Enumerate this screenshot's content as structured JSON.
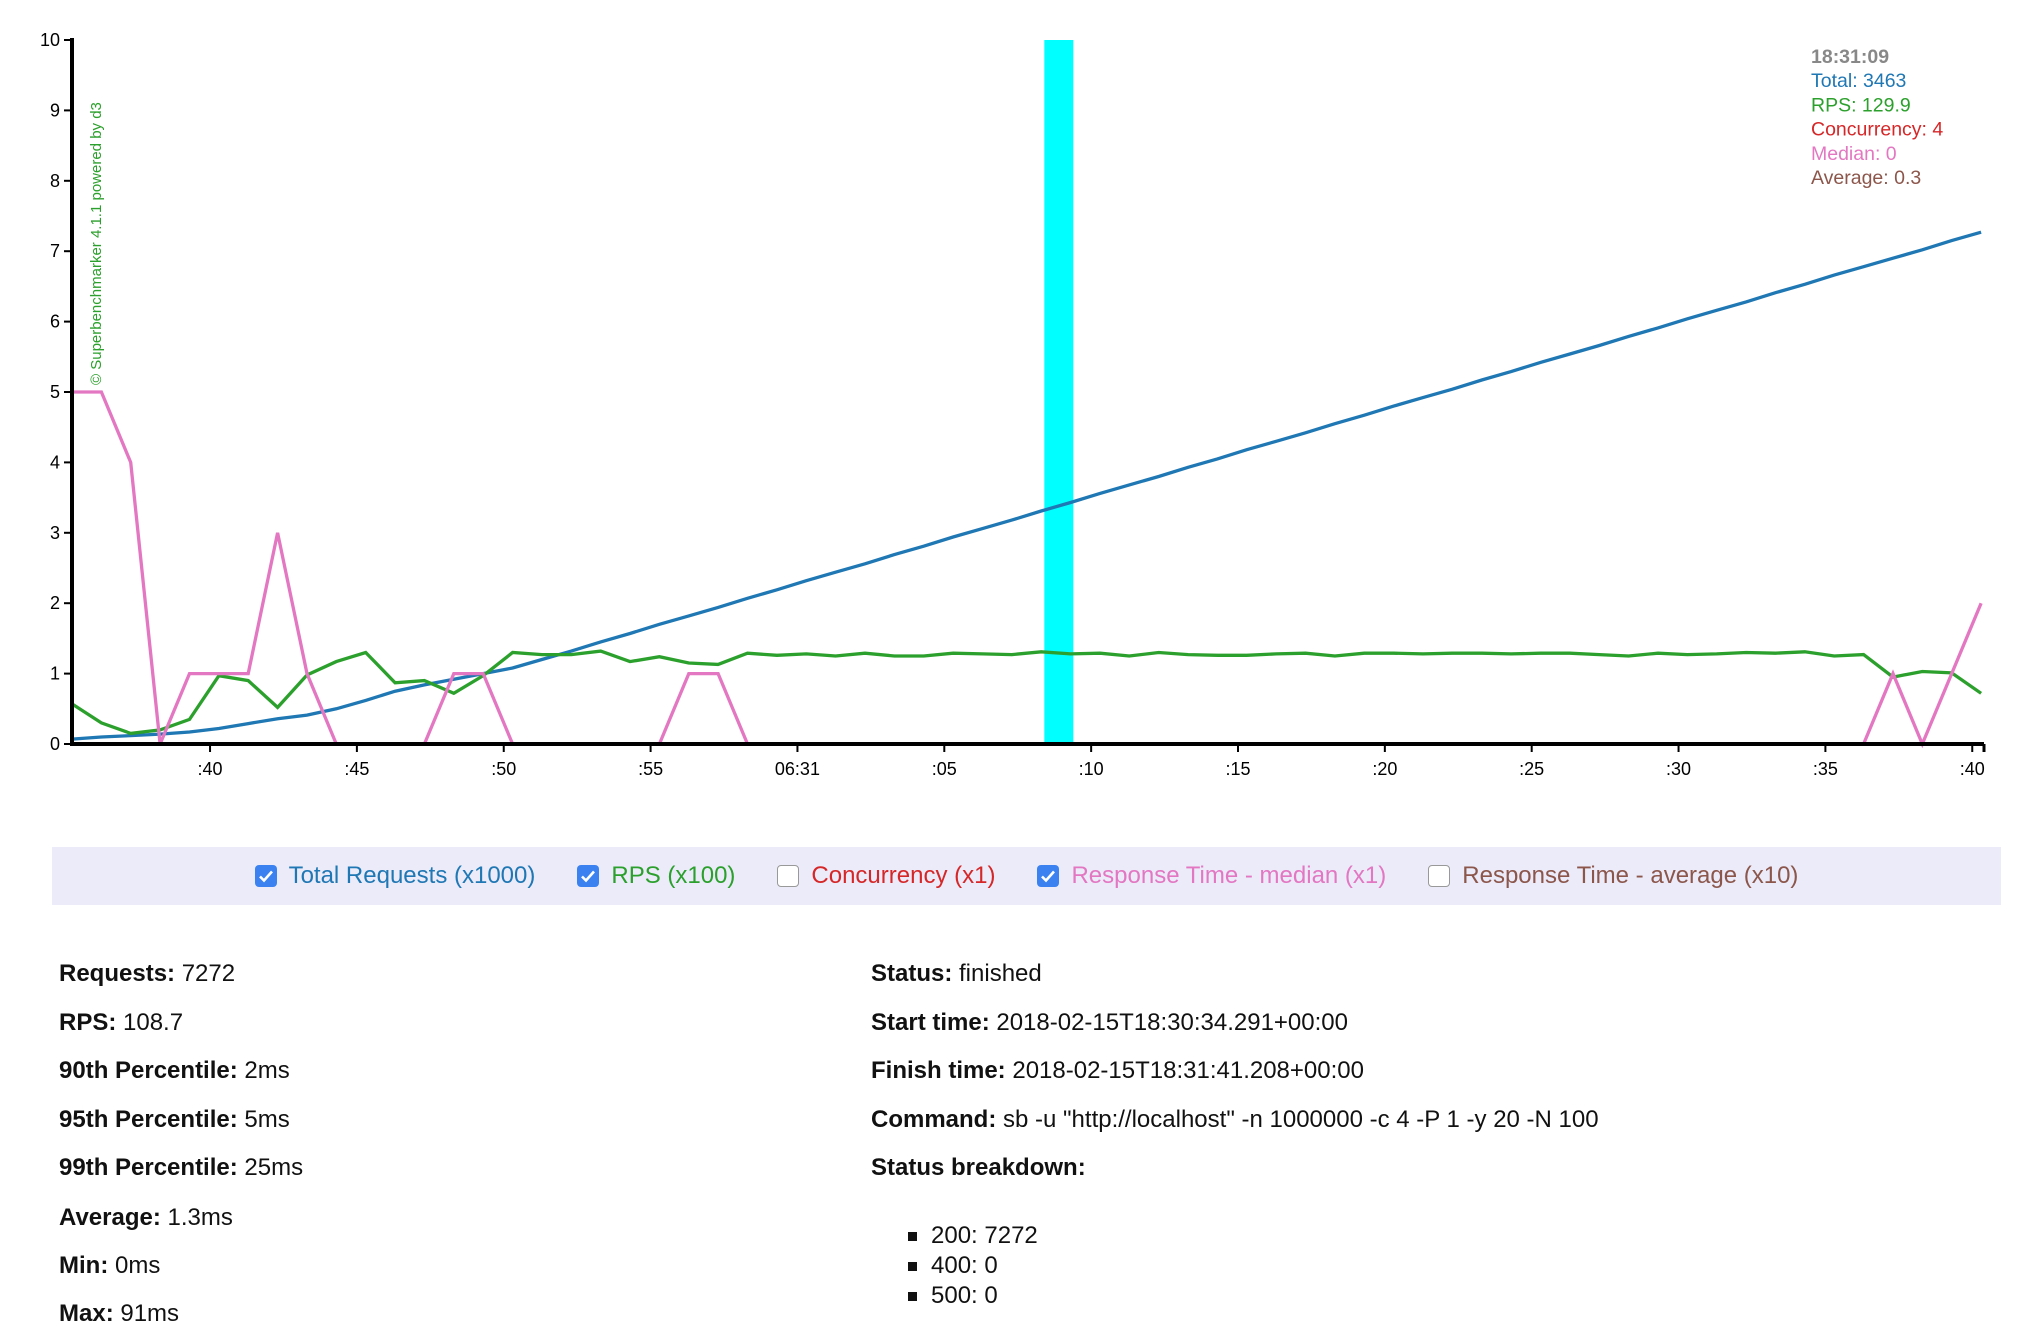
{
  "chart_data": {
    "type": "line",
    "x": [
      35.3,
      36.3,
      37.3,
      38.3,
      39.3,
      40.3,
      41.3,
      42.3,
      43.3,
      44.3,
      45.3,
      46.3,
      47.3,
      48.3,
      49.3,
      50.3,
      51.3,
      52.3,
      53.3,
      54.3,
      55.3,
      56.3,
      57.3,
      58.3,
      59.3,
      60.3,
      61.3,
      62.3,
      63.3,
      64.3,
      65.3,
      66.3,
      67.3,
      68.3,
      69.3,
      70.3,
      71.3,
      72.3,
      73.3,
      74.3,
      75.3,
      76.3,
      77.3,
      78.3,
      79.3,
      80.3,
      81.3,
      82.3,
      83.3,
      84.3,
      85.3,
      86.3,
      87.3,
      88.3,
      89.3,
      90.3,
      91.3,
      92.3,
      93.3,
      94.3,
      95.3,
      96.3,
      97.3,
      98.3,
      99.3,
      100.3
    ],
    "xlim": [
      35.3,
      100.4
    ],
    "xticks": [
      {
        "value": 40,
        "label": ":40"
      },
      {
        "value": 45,
        "label": ":45"
      },
      {
        "value": 50,
        "label": ":50"
      },
      {
        "value": 55,
        "label": ":55"
      },
      {
        "value": 60,
        "label": "06:31"
      },
      {
        "value": 65,
        "label": ":05"
      },
      {
        "value": 70,
        "label": ":10"
      },
      {
        "value": 75,
        "label": ":15"
      },
      {
        "value": 80,
        "label": ":20"
      },
      {
        "value": 85,
        "label": ":25"
      },
      {
        "value": 90,
        "label": ":30"
      },
      {
        "value": 95,
        "label": ":35"
      },
      {
        "value": 100,
        "label": ":40"
      }
    ],
    "ylim": [
      0,
      10
    ],
    "yticks": [
      0,
      1,
      2,
      3,
      4,
      5,
      6,
      7,
      8,
      9,
      10
    ],
    "watermark": "© Superbenchmarker 4.1.1 powered by d3",
    "cursor_x": 68.9,
    "cursor_color": "#00ffff",
    "tooltip": [
      {
        "text": "18:31:09",
        "color": "#888888"
      },
      {
        "text": "Total: 3463",
        "color": "#1f77b4"
      },
      {
        "text": "RPS: 129.9",
        "color": "#2ca02c"
      },
      {
        "text": "Concurrency: 4",
        "color": "#d62728"
      },
      {
        "text": "Median: 0",
        "color": "#e377c2"
      },
      {
        "text": "Average: 0.3",
        "color": "#8c564b"
      }
    ],
    "series": [
      {
        "name": "Total Requests (x1000)",
        "color": "#1f77b4",
        "checked": true,
        "values": [
          0.07,
          0.1,
          0.12,
          0.14,
          0.17,
          0.22,
          0.29,
          0.36,
          0.41,
          0.5,
          0.62,
          0.75,
          0.84,
          0.92,
          1.0,
          1.08,
          1.2,
          1.32,
          1.45,
          1.57,
          1.7,
          1.82,
          1.94,
          2.07,
          2.19,
          2.32,
          2.44,
          2.56,
          2.69,
          2.81,
          2.94,
          3.06,
          3.18,
          3.31,
          3.43,
          3.56,
          3.68,
          3.8,
          3.93,
          4.05,
          4.18,
          4.3,
          4.42,
          4.55,
          4.67,
          4.8,
          4.92,
          5.04,
          5.17,
          5.29,
          5.42,
          5.54,
          5.66,
          5.79,
          5.91,
          6.04,
          6.16,
          6.28,
          6.41,
          6.53,
          6.66,
          6.78,
          6.9,
          7.02,
          7.15,
          7.27
        ]
      },
      {
        "name": "RPS (x100)",
        "color": "#2ca02c",
        "checked": true,
        "values": [
          0.57,
          0.3,
          0.15,
          0.2,
          0.35,
          0.97,
          0.9,
          0.52,
          0.98,
          1.17,
          1.3,
          0.87,
          0.9,
          0.72,
          0.97,
          1.3,
          1.27,
          1.27,
          1.32,
          1.17,
          1.24,
          1.15,
          1.13,
          1.29,
          1.26,
          1.28,
          1.25,
          1.29,
          1.25,
          1.25,
          1.29,
          1.28,
          1.27,
          1.31,
          1.28,
          1.29,
          1.25,
          1.3,
          1.27,
          1.26,
          1.26,
          1.28,
          1.29,
          1.25,
          1.29,
          1.29,
          1.28,
          1.29,
          1.29,
          1.28,
          1.29,
          1.29,
          1.27,
          1.25,
          1.29,
          1.27,
          1.28,
          1.3,
          1.29,
          1.31,
          1.25,
          1.27,
          0.95,
          1.03,
          1.01,
          0.72
        ]
      },
      {
        "name": "Concurrency (x1)",
        "color": "#d62728",
        "checked": false
      },
      {
        "name": "Response Time - median (x1)",
        "color": "#e377c2",
        "checked": true,
        "values": [
          5,
          5,
          4,
          0,
          1,
          1,
          1,
          3,
          1,
          0,
          0,
          0,
          0,
          1,
          1,
          0,
          0,
          0,
          0,
          0,
          0,
          1,
          1,
          0,
          0,
          0,
          0,
          0,
          0,
          0,
          0,
          0,
          0,
          0,
          0,
          0,
          0,
          0,
          0,
          0,
          0,
          0,
          0,
          0,
          0,
          0,
          0,
          0,
          0,
          0,
          0,
          0,
          0,
          0,
          0,
          0,
          0,
          0,
          0,
          0,
          0,
          0,
          1,
          0,
          1,
          2
        ]
      },
      {
        "name": "Response Time - average (x10)",
        "color": "#8c564b",
        "checked": false
      }
    ]
  },
  "stats_left": [
    {
      "label": "Requests:",
      "value": "7272"
    },
    {
      "label": "RPS:",
      "value": "108.7"
    },
    {
      "label": "90th Percentile:",
      "value": "2ms"
    },
    {
      "label": "95th Percentile:",
      "value": "5ms"
    },
    {
      "label": "99th Percentile:",
      "value": "25ms"
    },
    {
      "label": "Average:",
      "value": "1.3ms"
    },
    {
      "label": "Min:",
      "value": "0ms"
    },
    {
      "label": "Max:",
      "value": "91ms"
    }
  ],
  "stats_right": [
    {
      "label": "Status:",
      "value": "finished"
    },
    {
      "label": "Start time:",
      "value": "2018-02-15T18:30:34.291+00:00"
    },
    {
      "label": "Finish time:",
      "value": "2018-02-15T18:31:41.208+00:00"
    },
    {
      "label": "Command:",
      "value": "sb -u \"http://localhost\" -n 1000000 -c 4 -P 1 -y 20 -N 100"
    }
  ],
  "status_breakdown": {
    "title": "Status breakdown:",
    "items": [
      "200: 7272",
      "400: 0",
      "500: 0"
    ]
  }
}
